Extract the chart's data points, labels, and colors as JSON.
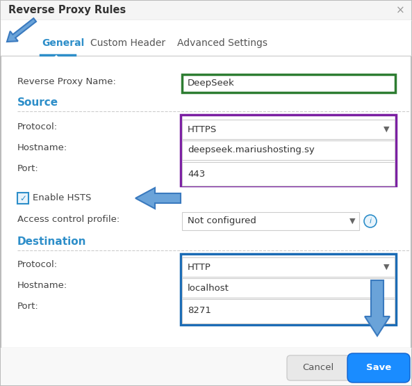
{
  "title": "Reverse Proxy Rules",
  "close_x": "×",
  "tabs": [
    "General",
    "Custom Header",
    "Advanced Settings"
  ],
  "bg_color": "#ffffff",
  "title_bar_bg": "#f5f5f5",
  "tab_color": "#2d8ec9",
  "label_color": "#444444",
  "section_color": "#2d8ec9",
  "arrow_color": "#6aa3d9",
  "arrow_edge_color": "#3a7abf",
  "checkbox_color": "#2d8ec9",
  "input_bg": "#ffffff",
  "input_field_border": "#cccccc",
  "source_border": "#7b1fa2",
  "dest_border": "#1a6bb5",
  "name_border": "#2e7d32",
  "cancel_bg": "#e8e8e8",
  "save_bg": "#1a8cff",
  "dashed_line_color": "#cccccc",
  "name_value": "DeepSeek",
  "source_protocol": "HTTPS",
  "source_hostname": "deepseek.mariushosting.sy",
  "source_port": "443",
  "dest_protocol": "HTTP",
  "dest_hostname": "localhost",
  "dest_port": "8271",
  "access_control_value": "Not configured",
  "enable_hsts_label": "Enable HSTS",
  "access_control_label": "Access control profile:",
  "source_label": "Source",
  "dest_label": "Destination",
  "cancel_btn": "Cancel",
  "save_btn": "Save"
}
